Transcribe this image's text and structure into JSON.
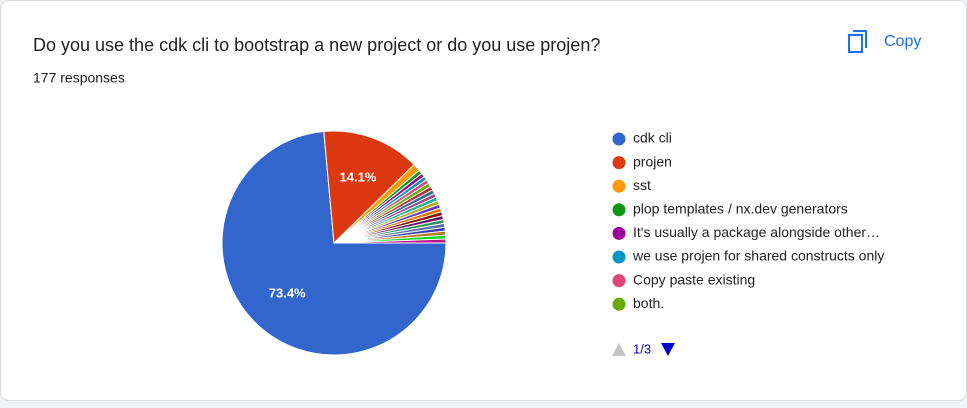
{
  "chart_data": {
    "type": "pie",
    "title": "Do you use the cdk cli to bootstrap a new project or do you use projen?",
    "subtitle": "177 responses",
    "copy_button": "Copy",
    "legend_page": "1/3",
    "categories": [
      "cdk cli",
      "projen",
      "sst",
      "plop templates / nx.dev generators",
      "It's usually a package alongside other…",
      "we use projen for shared constructs only",
      "Copy paste existing",
      "both.",
      null,
      null,
      null,
      null,
      null,
      null,
      null,
      null,
      null,
      null,
      null,
      null,
      null,
      null,
      null
    ],
    "values": [
      73.4,
      14.1,
      1.1,
      0.56,
      0.56,
      0.56,
      0.56,
      0.56,
      0.56,
      0.56,
      0.56,
      0.56,
      0.56,
      0.56,
      0.56,
      0.56,
      0.56,
      0.56,
      0.56,
      0.56,
      0.56,
      0.56,
      0.56
    ],
    "value_labels": [
      "73.4%",
      "14.1%",
      null,
      null,
      null,
      null,
      null,
      null,
      null,
      null,
      null,
      null,
      null,
      null,
      null,
      null,
      null,
      null,
      null,
      null,
      null,
      null,
      null
    ],
    "colors": [
      "#3366cc",
      "#dc3912",
      "#ff9900",
      "#109618",
      "#990099",
      "#0099c6",
      "#dd4477",
      "#66aa00",
      "#b82e2e",
      "#316395",
      "#994499",
      "#22aa99",
      "#aaaa11",
      "#6633cc",
      "#e67300",
      "#8b0707",
      "#651067",
      "#329262",
      "#5574a6",
      "#3b3eac",
      "#b77322",
      "#16d620",
      "#b91383"
    ]
  }
}
